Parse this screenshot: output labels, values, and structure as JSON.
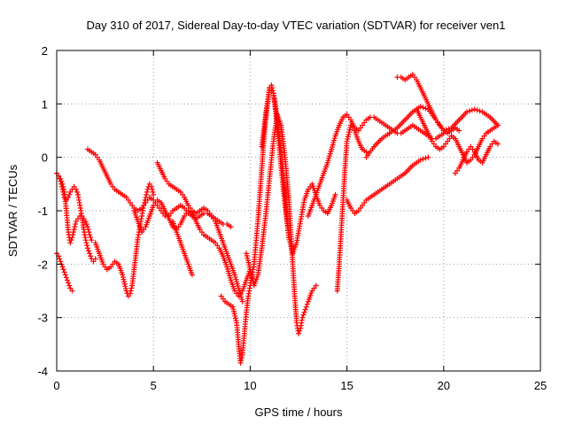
{
  "chart_data": {
    "type": "scatter",
    "title": "Day 310 of 2017, Sidereal Day-to-day VTEC variation (SDTVAR) for receiver ven1",
    "xlabel": "GPS time / hours",
    "ylabel": "SDTVAR / TECUs",
    "xlim": [
      0,
      25
    ],
    "ylim": [
      -4,
      2
    ],
    "xticks": [
      "0",
      "5",
      "10",
      "15",
      "20",
      "25"
    ],
    "yticks": [
      "-4",
      "-3",
      "-2",
      "-1",
      "0",
      "1",
      "2"
    ],
    "grid": true,
    "legend": "none",
    "marker": "plus",
    "series_color": "#ff0000",
    "series": [
      {
        "x": [
          0.0,
          0.1,
          0.2,
          0.3,
          0.4,
          0.5,
          0.6,
          0.7,
          0.8,
          0.9,
          1.0,
          1.1,
          1.2,
          1.3,
          1.4,
          1.5,
          1.6,
          1.7,
          1.8,
          1.9,
          2.0
        ],
        "y": [
          -0.3,
          -0.35,
          -0.45,
          -0.6,
          -0.75,
          -0.8,
          -0.75,
          -0.65,
          -0.6,
          -0.55,
          -0.6,
          -0.7,
          -0.9,
          -1.1,
          -1.35,
          -1.55,
          -1.7,
          -1.8,
          -1.9,
          -1.95,
          -1.9
        ]
      },
      {
        "x": [
          0.0,
          0.1,
          0.2,
          0.3,
          0.4,
          0.5,
          0.6,
          0.7,
          0.8
        ],
        "y": [
          -1.8,
          -1.85,
          -1.95,
          -2.05,
          -2.15,
          -2.25,
          -2.35,
          -2.45,
          -2.5
        ]
      },
      {
        "x": [
          0.2,
          0.3,
          0.4,
          0.5,
          0.6,
          0.7,
          0.8,
          0.9,
          1.0,
          1.1,
          1.2,
          1.3,
          1.4,
          1.5,
          1.6,
          1.7,
          1.8
        ],
        "y": [
          -0.4,
          -0.5,
          -0.65,
          -1.0,
          -1.4,
          -1.6,
          -1.5,
          -1.35,
          -1.2,
          -1.15,
          -1.1,
          -1.1,
          -1.15,
          -1.2,
          -1.3,
          -1.45,
          -1.55
        ]
      },
      {
        "x": [
          1.6,
          1.8,
          2.0,
          2.2,
          2.4,
          2.6,
          2.8,
          3.0,
          3.2,
          3.4,
          3.6,
          3.8,
          4.0,
          4.2,
          4.4,
          4.6,
          4.8,
          5.0,
          5.2,
          5.4,
          5.6,
          5.8,
          6.0,
          6.2,
          6.4,
          6.6,
          6.8,
          7.0,
          7.2,
          7.4,
          7.6,
          7.8,
          8.0,
          8.2,
          8.4,
          8.6,
          8.8,
          9.0
        ],
        "y": [
          0.15,
          0.1,
          0.05,
          -0.05,
          -0.2,
          -0.35,
          -0.5,
          -0.6,
          -0.65,
          -0.7,
          -0.75,
          -0.85,
          -0.95,
          -1.0,
          -0.95,
          -0.85,
          -0.75,
          -0.8,
          -0.9,
          -1.0,
          -1.1,
          -1.1,
          -1.0,
          -0.95,
          -0.9,
          -0.95,
          -1.05,
          -1.1,
          -1.15,
          -1.1,
          -1.05,
          -1.05,
          -1.1,
          -1.15,
          -1.2,
          -1.25,
          -1.25,
          -1.3
        ]
      },
      {
        "x": [
          2.0,
          2.2,
          2.4,
          2.6,
          2.8,
          3.0,
          3.2,
          3.4,
          3.6,
          3.7,
          3.8,
          3.9,
          4.0,
          4.1,
          4.2,
          4.3,
          4.4,
          4.5,
          4.6,
          4.7,
          4.8,
          4.9,
          5.0
        ],
        "y": [
          -1.6,
          -1.8,
          -2.0,
          -2.1,
          -2.05,
          -1.95,
          -2.0,
          -2.2,
          -2.5,
          -2.6,
          -2.55,
          -2.4,
          -2.1,
          -1.8,
          -1.5,
          -1.3,
          -1.1,
          -0.9,
          -0.75,
          -0.6,
          -0.5,
          -0.55,
          -0.7
        ]
      },
      {
        "x": [
          4.0,
          4.2,
          4.4,
          4.6,
          4.8,
          5.0,
          5.2,
          5.4,
          5.6,
          5.8,
          6.0,
          6.2,
          6.4,
          6.6,
          6.8,
          7.0,
          7.2,
          7.4,
          7.6,
          7.8,
          8.0,
          8.2,
          8.4,
          8.6,
          8.8,
          9.0,
          9.2,
          9.4,
          9.6,
          9.8,
          10.0
        ],
        "y": [
          -1.0,
          -1.2,
          -1.4,
          -1.3,
          -1.1,
          -0.9,
          -0.8,
          -0.85,
          -1.0,
          -1.15,
          -1.3,
          -1.35,
          -1.25,
          -1.1,
          -1.0,
          -1.05,
          -1.2,
          -1.35,
          -1.45,
          -1.5,
          -1.55,
          -1.6,
          -1.7,
          -1.85,
          -2.05,
          -2.3,
          -2.5,
          -2.6,
          -2.5,
          -2.3,
          -2.1
        ]
      },
      {
        "x": [
          5.2,
          5.4,
          5.6,
          5.8,
          6.0,
          6.2,
          6.4,
          6.6,
          6.8,
          7.0,
          7.2,
          7.4,
          7.6,
          7.8,
          8.0,
          8.2,
          8.4,
          8.6,
          8.8,
          9.0,
          9.2,
          9.4,
          9.6
        ],
        "y": [
          -0.1,
          -0.25,
          -0.4,
          -0.5,
          -0.55,
          -0.6,
          -0.65,
          -0.75,
          -0.9,
          -1.0,
          -1.05,
          -1.0,
          -0.95,
          -1.0,
          -1.1,
          -1.2,
          -1.4,
          -1.6,
          -1.8,
          -2.0,
          -2.2,
          -2.45,
          -2.7
        ]
      },
      {
        "x": [
          6.0,
          6.2,
          6.4,
          6.6,
          6.8,
          7.0
        ],
        "y": [
          -1.2,
          -1.4,
          -1.6,
          -1.8,
          -2.0,
          -2.2
        ]
      },
      {
        "x": [
          8.5,
          8.7,
          8.9,
          9.1,
          9.3,
          9.4,
          9.5,
          9.6,
          9.7,
          9.8,
          9.9,
          10.0,
          10.1,
          10.2,
          10.3,
          10.4,
          10.5,
          10.6,
          10.7,
          10.8,
          10.9,
          11.0,
          11.1,
          11.2,
          11.3,
          11.4,
          11.5,
          11.6,
          11.7,
          11.8,
          11.9,
          12.0
        ],
        "y": [
          -2.6,
          -2.7,
          -2.75,
          -2.8,
          -3.1,
          -3.5,
          -3.85,
          -3.7,
          -3.3,
          -2.9,
          -2.6,
          -2.4,
          -2.2,
          -2.0,
          -1.6,
          -1.2,
          -0.7,
          -0.2,
          0.3,
          0.7,
          1.0,
          1.3,
          1.35,
          1.2,
          1.0,
          0.7,
          0.4,
          0.1,
          -0.3,
          -0.7,
          -1.1,
          -1.5
        ]
      },
      {
        "x": [
          9.8,
          10.0,
          10.2,
          10.4,
          10.6,
          10.8,
          11.0,
          11.2,
          11.4,
          11.6,
          11.8,
          12.0,
          12.1,
          12.2,
          12.3,
          12.4,
          12.5,
          12.6,
          12.7,
          12.8,
          12.9,
          13.0,
          13.2,
          13.4
        ],
        "y": [
          -1.8,
          -2.1,
          -2.4,
          -2.2,
          -1.7,
          -1.1,
          -0.4,
          0.3,
          0.8,
          0.6,
          0.0,
          -0.8,
          -1.4,
          -2.0,
          -2.6,
          -3.1,
          -3.3,
          -3.2,
          -3.0,
          -2.9,
          -2.8,
          -2.7,
          -2.5,
          -2.4
        ]
      },
      {
        "x": [
          10.6,
          10.8,
          11.0,
          11.2,
          11.4,
          11.6,
          11.8,
          12.0,
          12.2,
          12.4,
          12.6,
          12.8,
          13.0,
          13.2,
          13.4,
          13.6,
          13.8,
          14.0,
          14.2,
          14.4
        ],
        "y": [
          0.2,
          0.8,
          1.3,
          1.2,
          0.6,
          -0.2,
          -0.9,
          -1.5,
          -1.8,
          -1.6,
          -1.2,
          -0.8,
          -0.6,
          -0.5,
          -0.7,
          -0.9,
          -1.0,
          -1.05,
          -0.9,
          -0.7
        ]
      },
      {
        "x": [
          13.0,
          13.2,
          13.4,
          13.6,
          13.8,
          14.0,
          14.2,
          14.4,
          14.6,
          14.8,
          15.0,
          15.2,
          15.4,
          15.6,
          15.8,
          16.0,
          16.2,
          16.4,
          16.6,
          16.8,
          17.0,
          17.2,
          17.4,
          17.6,
          17.8,
          18.0,
          18.2,
          18.4,
          18.6,
          18.8,
          19.0,
          19.2,
          19.4,
          19.6,
          19.8,
          20.0
        ],
        "y": [
          -1.1,
          -0.9,
          -0.7,
          -0.5,
          -0.3,
          -0.1,
          0.15,
          0.4,
          0.6,
          0.75,
          0.8,
          0.7,
          0.55,
          0.5,
          0.6,
          0.7,
          0.75,
          0.75,
          0.7,
          0.65,
          0.6,
          0.55,
          0.5,
          0.45,
          0.45,
          0.5,
          0.55,
          0.6,
          0.55,
          0.5,
          0.45,
          0.4,
          0.35,
          0.35,
          0.4,
          0.45
        ]
      },
      {
        "x": [
          14.5,
          14.6,
          14.7,
          14.8,
          14.9,
          15.0,
          15.2,
          15.4,
          15.6,
          15.8,
          16.0
        ],
        "y": [
          -2.5,
          -2.0,
          -1.4,
          -0.8,
          -0.2,
          0.3,
          0.6,
          0.5,
          0.3,
          0.15,
          0.1
        ]
      },
      {
        "x": [
          15.0,
          15.2,
          15.4,
          15.6,
          15.8,
          16.0,
          16.4,
          16.8,
          17.2,
          17.6,
          18.0,
          18.4,
          18.8,
          19.2
        ],
        "y": [
          -0.8,
          -0.95,
          -1.05,
          -1.0,
          -0.9,
          -0.8,
          -0.7,
          -0.6,
          -0.5,
          -0.4,
          -0.3,
          -0.15,
          -0.05,
          0.0
        ]
      },
      {
        "x": [
          16.0,
          16.4,
          16.8,
          17.2,
          17.6,
          18.0,
          18.4,
          18.8,
          19.2,
          19.6,
          20.0,
          20.4,
          20.8,
          21.2,
          21.6,
          22.0,
          22.4,
          22.8
        ],
        "y": [
          0.0,
          0.2,
          0.35,
          0.45,
          0.55,
          0.7,
          0.85,
          0.95,
          0.9,
          0.7,
          0.5,
          0.55,
          0.7,
          0.85,
          0.9,
          0.85,
          0.75,
          0.6
        ]
      },
      {
        "x": [
          17.6,
          17.8,
          18.0,
          18.2,
          18.4,
          18.6,
          18.8,
          19.0,
          19.2,
          19.4,
          19.6,
          19.8,
          20.0,
          20.2,
          20.4,
          20.6,
          20.8
        ],
        "y": [
          1.5,
          1.5,
          1.45,
          1.5,
          1.55,
          1.45,
          1.3,
          1.15,
          1.0,
          0.85,
          0.7,
          0.6,
          0.5,
          0.45,
          0.5,
          0.55,
          0.5
        ]
      },
      {
        "x": [
          18.6,
          18.8,
          19.0,
          19.2,
          19.4,
          19.6,
          19.8,
          20.0,
          20.2,
          20.4,
          20.6,
          20.8,
          21.0,
          21.2,
          21.4,
          21.6,
          21.8,
          22.0,
          22.2,
          22.4,
          22.6,
          22.8
        ],
        "y": [
          0.9,
          0.75,
          0.6,
          0.45,
          0.3,
          0.2,
          0.15,
          0.2,
          0.3,
          0.4,
          0.35,
          0.2,
          0.05,
          -0.1,
          -0.05,
          0.05,
          0.2,
          0.35,
          0.45,
          0.5,
          0.55,
          0.6
        ]
      },
      {
        "x": [
          20.6,
          20.8,
          21.0,
          21.2,
          21.4,
          21.6,
          21.8,
          22.0,
          22.2,
          22.4,
          22.6,
          22.8
        ],
        "y": [
          -0.3,
          -0.2,
          -0.05,
          0.1,
          0.2,
          0.1,
          -0.05,
          -0.1,
          0.05,
          0.2,
          0.3,
          0.25
        ]
      }
    ]
  }
}
